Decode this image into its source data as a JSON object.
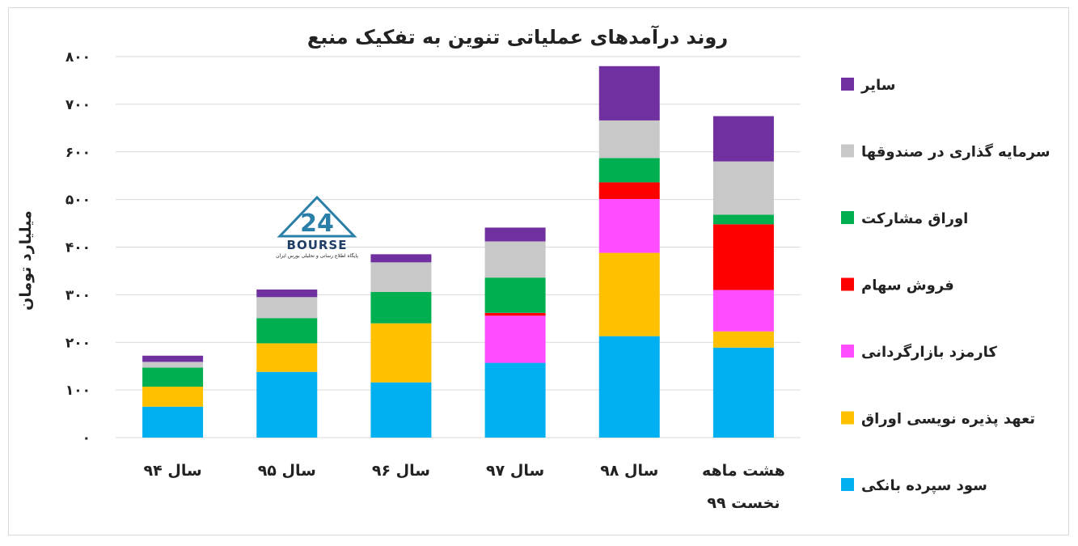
{
  "chart_data": {
    "type": "bar",
    "stacked": true,
    "title": "روند درآمدهای عملیاتی تنوین به تفکیک منبع",
    "ylabel": "میلیارد تومان",
    "xlabel": "",
    "ylim": [
      0,
      800
    ],
    "yticks": [
      0,
      100,
      200,
      300,
      400,
      500,
      600,
      700,
      800
    ],
    "ytick_labels": [
      "۰",
      "۱۰۰",
      "۲۰۰",
      "۳۰۰",
      "۴۰۰",
      "۵۰۰",
      "۶۰۰",
      "۷۰۰",
      "۸۰۰"
    ],
    "grid": true,
    "legend_position": "right",
    "categories": [
      [
        "سال ۹۴"
      ],
      [
        "سال ۹۵"
      ],
      [
        "سال ۹۶"
      ],
      [
        "سال ۹۷"
      ],
      [
        "سال ۹۸"
      ],
      [
        "هشت ماهه",
        "نخست ۹۹"
      ]
    ],
    "series": [
      {
        "name": "سود سپرده بانکی",
        "color": "#00b0f0",
        "values": [
          65,
          138,
          116,
          157,
          213,
          189
        ]
      },
      {
        "name": "تعهد پذیره نویسی اوراق",
        "color": "#ffc000",
        "values": [
          42,
          60,
          124,
          0,
          175,
          34
        ]
      },
      {
        "name": "کارمزد بازارگردانی",
        "color": "#ff4dff",
        "values": [
          0,
          0,
          0,
          99,
          113,
          87
        ]
      },
      {
        "name": "فروش سهام",
        "color": "#ff0000",
        "values": [
          0,
          0,
          0,
          6,
          35,
          138
        ]
      },
      {
        "name": "اوراق مشارکت",
        "color": "#00b050",
        "values": [
          40,
          53,
          66,
          74,
          51,
          20
        ]
      },
      {
        "name": "سرمایه گذاری در صندوقها",
        "color": "#c8c8c8",
        "values": [
          12,
          44,
          62,
          76,
          79,
          112
        ]
      },
      {
        "name": "سایر",
        "color": "#7030a0",
        "values": [
          13,
          16,
          17,
          29,
          114,
          95
        ]
      }
    ]
  },
  "watermark": {
    "logo_text": "BOURSE",
    "sub_text": "پایگاه اطلاع رسانی و تحلیلی بورس ایران",
    "colors": {
      "main": "#2a7fa8",
      "dark": "#1f3f66"
    }
  }
}
